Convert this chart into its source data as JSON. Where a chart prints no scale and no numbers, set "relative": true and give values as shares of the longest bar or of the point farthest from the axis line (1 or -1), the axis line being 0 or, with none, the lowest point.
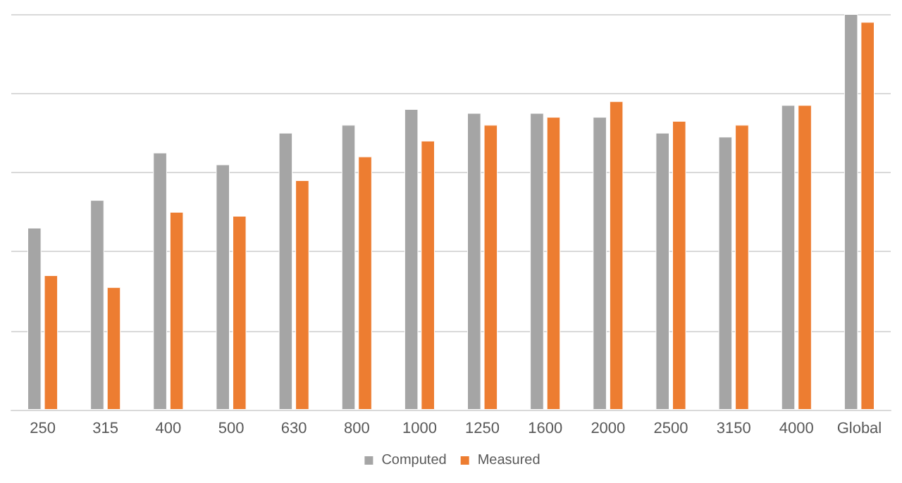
{
  "chart_data": {
    "type": "bar",
    "relative": true,
    "categories": [
      "250",
      "315",
      "400",
      "500",
      "630",
      "800",
      "1000",
      "1250",
      "1600",
      "2000",
      "2500",
      "3150",
      "4000",
      "Global"
    ],
    "series": [
      {
        "name": "Computed",
        "color": "#a5a5a5",
        "values": [
          0.46,
          0.53,
          0.65,
          0.62,
          0.7,
          0.72,
          0.76,
          0.75,
          0.75,
          0.74,
          0.7,
          0.69,
          0.77,
          1
        ]
      },
      {
        "name": "Measured",
        "color": "#ed7d31",
        "values": [
          0.34,
          0.31,
          0.5,
          0.49,
          0.58,
          0.64,
          0.68,
          0.72,
          0.74,
          0.78,
          0.73,
          0.72,
          0.77,
          0.98
        ]
      }
    ],
    "grid": "y",
    "legend": "bottom"
  }
}
